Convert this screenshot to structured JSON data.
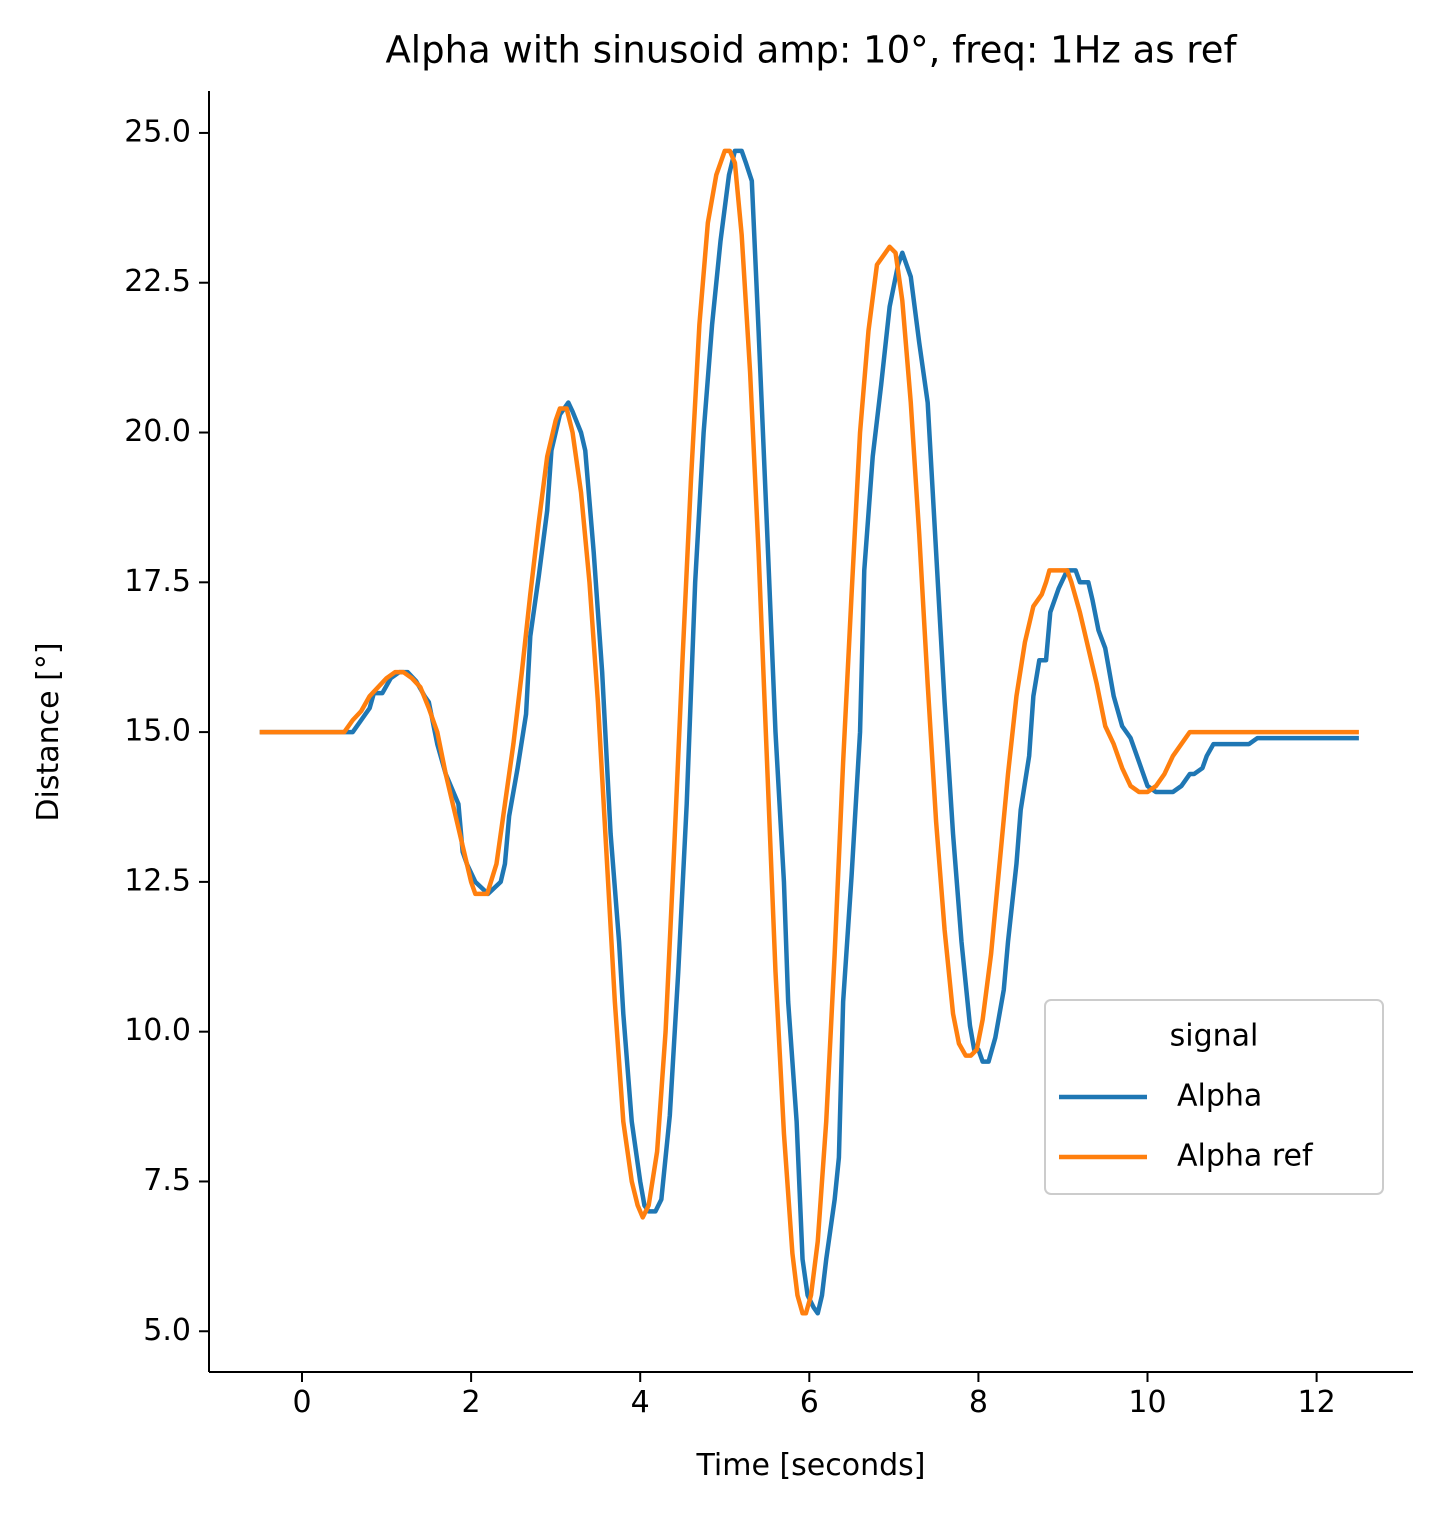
{
  "chart_data": {
    "type": "line",
    "title": "Alpha with sinusoid amp: 10°, freq: 1Hz as ref",
    "xlabel": "Time [seconds]",
    "ylabel": "Distance [°]",
    "xlim": [
      -1.1,
      13.14
    ],
    "ylim": [
      4.32,
      25.7
    ],
    "xticks": [
      0,
      2,
      4,
      6,
      8,
      10,
      12
    ],
    "yticks": [
      {
        "value": 5,
        "label": "5.0"
      },
      {
        "value": 7.5,
        "label": "7.5"
      },
      {
        "value": 10,
        "label": "10.0"
      },
      {
        "value": 12.5,
        "label": "12.5"
      },
      {
        "value": 15,
        "label": "15.0"
      },
      {
        "value": 17.5,
        "label": "17.5"
      },
      {
        "value": 20,
        "label": "20.0"
      },
      {
        "value": 22.5,
        "label": "22.5"
      },
      {
        "value": 25,
        "label": "25.0"
      }
    ],
    "legend_title": "signal",
    "legend_loc": "lower right",
    "series": [
      {
        "name": "Alpha",
        "color": "#1f77b4",
        "x": [
          -0.5,
          0.6,
          0.7,
          0.8,
          0.85,
          0.95,
          1.05,
          1.15,
          1.25,
          1.35,
          1.45,
          1.5,
          1.6,
          1.7,
          1.85,
          1.9,
          1.95,
          2.05,
          2.2,
          2.35,
          2.4,
          2.45,
          2.55,
          2.65,
          2.7,
          2.8,
          2.9,
          2.95,
          3.05,
          3.15,
          3.2,
          3.3,
          3.35,
          3.45,
          3.55,
          3.65,
          3.75,
          3.8,
          3.9,
          4.0,
          4.05,
          4.1,
          4.18,
          4.25,
          4.3,
          4.35,
          4.45,
          4.55,
          4.65,
          4.75,
          4.85,
          4.95,
          5.05,
          5.12,
          5.2,
          5.25,
          5.32,
          5.4,
          5.5,
          5.6,
          5.7,
          5.75,
          5.85,
          5.92,
          5.98,
          6.05,
          6.1,
          6.15,
          6.2,
          6.3,
          6.35,
          6.4,
          6.5,
          6.6,
          6.65,
          6.75,
          6.85,
          6.95,
          7.05,
          7.1,
          7.2,
          7.3,
          7.4,
          7.5,
          7.6,
          7.7,
          7.8,
          7.9,
          7.95,
          8.0,
          8.05,
          8.12,
          8.2,
          8.3,
          8.35,
          8.45,
          8.5,
          8.6,
          8.65,
          8.72,
          8.8,
          8.85,
          8.95,
          9.05,
          9.15,
          9.2,
          9.3,
          9.35,
          9.42,
          9.5,
          9.6,
          9.7,
          9.8,
          9.9,
          10.0,
          10.1,
          10.3,
          10.4,
          10.5,
          10.55,
          10.65,
          10.7,
          10.78,
          11.2,
          11.3,
          12.5
        ],
        "values": [
          15,
          15,
          15.2,
          15.4,
          15.65,
          15.65,
          15.9,
          16,
          16,
          15.85,
          15.6,
          15.5,
          14.8,
          14.3,
          13.8,
          13,
          12.8,
          12.5,
          12.3,
          12.5,
          12.8,
          13.6,
          14.4,
          15.3,
          16.6,
          17.6,
          18.7,
          19.7,
          20.3,
          20.5,
          20.35,
          20,
          19.7,
          18,
          16,
          13.3,
          11.5,
          10.3,
          8.5,
          7.5,
          7.1,
          7,
          7,
          7.2,
          7.9,
          8.6,
          11,
          13.8,
          17.5,
          20,
          21.8,
          23.2,
          24.3,
          24.7,
          24.7,
          24.5,
          24.2,
          21.7,
          18.4,
          15,
          12.5,
          10.5,
          8.5,
          6.2,
          5.6,
          5.4,
          5.3,
          5.6,
          6.2,
          7.2,
          7.9,
          10.5,
          12.6,
          15,
          17.7,
          19.6,
          20.8,
          22.1,
          22.8,
          23,
          22.6,
          21.5,
          20.5,
          18,
          15.5,
          13.3,
          11.5,
          10.1,
          9.7,
          9.7,
          9.5,
          9.5,
          9.9,
          10.7,
          11.5,
          12.8,
          13.7,
          14.6,
          15.6,
          16.2,
          16.2,
          17,
          17.4,
          17.7,
          17.7,
          17.5,
          17.5,
          17.2,
          16.7,
          16.4,
          15.6,
          15.1,
          14.9,
          14.5,
          14.1,
          14,
          14,
          14.1,
          14.3,
          14.3,
          14.4,
          14.6,
          14.8,
          14.8,
          14.9,
          14.9
        ]
      },
      {
        "name": "Alpha ref",
        "color": "#ff7f0e",
        "x": [
          -0.5,
          0.5,
          0.6,
          0.7,
          0.8,
          0.9,
          1.0,
          1.1,
          1.2,
          1.3,
          1.4,
          1.5,
          1.6,
          1.7,
          1.8,
          1.9,
          2.0,
          2.05,
          2.19,
          2.3,
          2.4,
          2.5,
          2.6,
          2.7,
          2.8,
          2.9,
          3.0,
          3.05,
          3.13,
          3.2,
          3.3,
          3.4,
          3.5,
          3.6,
          3.7,
          3.8,
          3.9,
          3.97,
          4.03,
          4.1,
          4.2,
          4.3,
          4.4,
          4.5,
          4.6,
          4.7,
          4.8,
          4.9,
          5.0,
          5.06,
          5.12,
          5.2,
          5.3,
          5.4,
          5.5,
          5.6,
          5.7,
          5.8,
          5.86,
          5.92,
          5.96,
          6.02,
          6.1,
          6.2,
          6.3,
          6.4,
          6.5,
          6.6,
          6.7,
          6.8,
          6.9,
          6.95,
          7.02,
          7.1,
          7.2,
          7.3,
          7.4,
          7.5,
          7.6,
          7.7,
          7.77,
          7.85,
          7.91,
          7.98,
          8.05,
          8.15,
          8.25,
          8.35,
          8.45,
          8.55,
          8.65,
          8.75,
          8.8,
          8.84,
          9.05,
          9.1,
          9.2,
          9.3,
          9.4,
          9.5,
          9.6,
          9.7,
          9.8,
          9.9,
          10.0,
          10.1,
          10.2,
          10.3,
          10.4,
          10.5,
          10.6,
          12.5
        ],
        "values": [
          15,
          15,
          15.2,
          15.35,
          15.6,
          15.75,
          15.9,
          16,
          16,
          15.9,
          15.75,
          15.4,
          15,
          14.3,
          13.7,
          13.1,
          12.5,
          12.3,
          12.3,
          12.8,
          13.8,
          14.8,
          16,
          17.3,
          18.5,
          19.6,
          20.2,
          20.4,
          20.4,
          20,
          19,
          17.5,
          15.5,
          13,
          10.5,
          8.5,
          7.5,
          7.1,
          6.9,
          7.1,
          8,
          10,
          13,
          16.2,
          19.2,
          21.8,
          23.5,
          24.3,
          24.7,
          24.7,
          24.5,
          23.3,
          21,
          18,
          14.5,
          11,
          8.3,
          6.3,
          5.6,
          5.3,
          5.3,
          5.6,
          6.5,
          8.5,
          11.3,
          14.5,
          17.3,
          20,
          21.7,
          22.8,
          23,
          23.1,
          23,
          22.2,
          20.5,
          18.3,
          15.8,
          13.5,
          11.7,
          10.3,
          9.8,
          9.6,
          9.6,
          9.7,
          10.2,
          11.3,
          12.8,
          14.3,
          15.6,
          16.5,
          17.1,
          17.3,
          17.5,
          17.7,
          17.7,
          17.5,
          17,
          16.4,
          15.8,
          15.1,
          14.8,
          14.4,
          14.1,
          14,
          14,
          14.1,
          14.3,
          14.6,
          14.8,
          15,
          15,
          15
        ]
      }
    ]
  }
}
